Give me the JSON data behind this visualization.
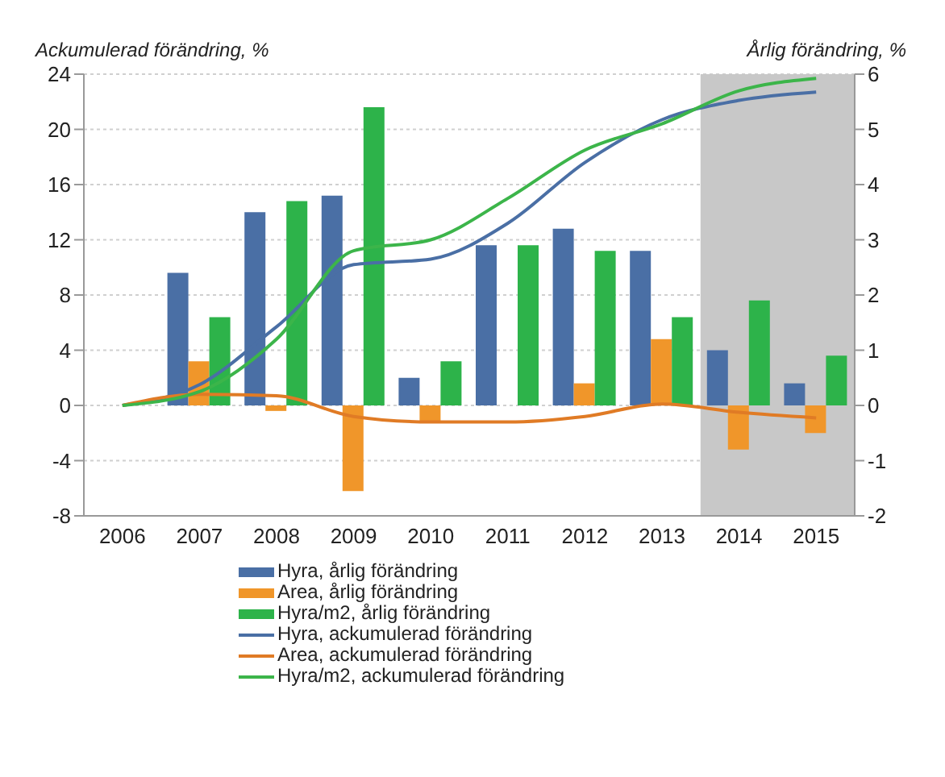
{
  "chart_data": {
    "type": "bar",
    "ylabel": "Ackumulerad förändring, %",
    "y2label": "Årlig förändring, %",
    "x": [
      2006,
      2007,
      2008,
      2009,
      2010,
      2011,
      2012,
      2013,
      2014,
      2015
    ],
    "xlim": [
      2005.5,
      2015.5
    ],
    "xticks": [
      2006,
      2007,
      2008,
      2009,
      2010,
      2011,
      2012,
      2013,
      2014,
      2015
    ],
    "ylim": [
      -8,
      24
    ],
    "yticks": [
      -8,
      -4,
      0,
      4,
      8,
      12,
      16,
      20,
      24
    ],
    "y2lim": [
      -2,
      6
    ],
    "y2ticks": [
      -2,
      -1,
      0,
      1,
      2,
      3,
      4,
      5,
      6
    ],
    "grid": "y",
    "legend": "bottom",
    "bands": [
      {
        "axis": "x",
        "from": 2013.5,
        "to": 2015.5,
        "color": "#c8c8c8"
      }
    ],
    "series": [
      {
        "name": "Hyra, årlig förändring",
        "axis": "y2",
        "color": "#4a6fa5",
        "values": [
          null,
          2.4,
          3.5,
          3.8,
          0.5,
          2.9,
          3.2,
          2.8,
          1.0,
          0.4
        ]
      },
      {
        "name": "Area, årlig förändring",
        "axis": "y2",
        "color": "#f0962a",
        "values": [
          null,
          0.8,
          -0.1,
          -1.55,
          -0.3,
          0,
          0.4,
          1.2,
          -0.8,
          -0.5
        ]
      },
      {
        "name": "Hyra/m2, årlig förändring",
        "axis": "y2",
        "color": "#2db34a",
        "values": [
          null,
          1.6,
          3.7,
          5.4,
          0.8,
          2.9,
          2.8,
          1.6,
          1.9,
          0.9
        ]
      },
      {
        "name": "Hyra, ackumulerad förändring",
        "type": "line",
        "axis": "y",
        "color": "#4a6fa5",
        "values": [
          0,
          1.5,
          5.7,
          10.2,
          10.6,
          13.2,
          17.6,
          20.7,
          22.1,
          22.7
        ]
      },
      {
        "name": "Area, ackumulerad förändring",
        "type": "line",
        "axis": "y",
        "color": "#e07b25",
        "values": [
          0,
          0.8,
          0.7,
          -0.8,
          -1.2,
          -1.2,
          -0.8,
          0.1,
          -0.5,
          -0.9
        ]
      },
      {
        "name": "Hyra/m2, ackumulerad förändring",
        "type": "line",
        "axis": "y",
        "color": "#3cb54a",
        "values": [
          0,
          1.0,
          4.8,
          11.2,
          12,
          15,
          18.5,
          20.4,
          22.8,
          23.7
        ]
      }
    ]
  }
}
